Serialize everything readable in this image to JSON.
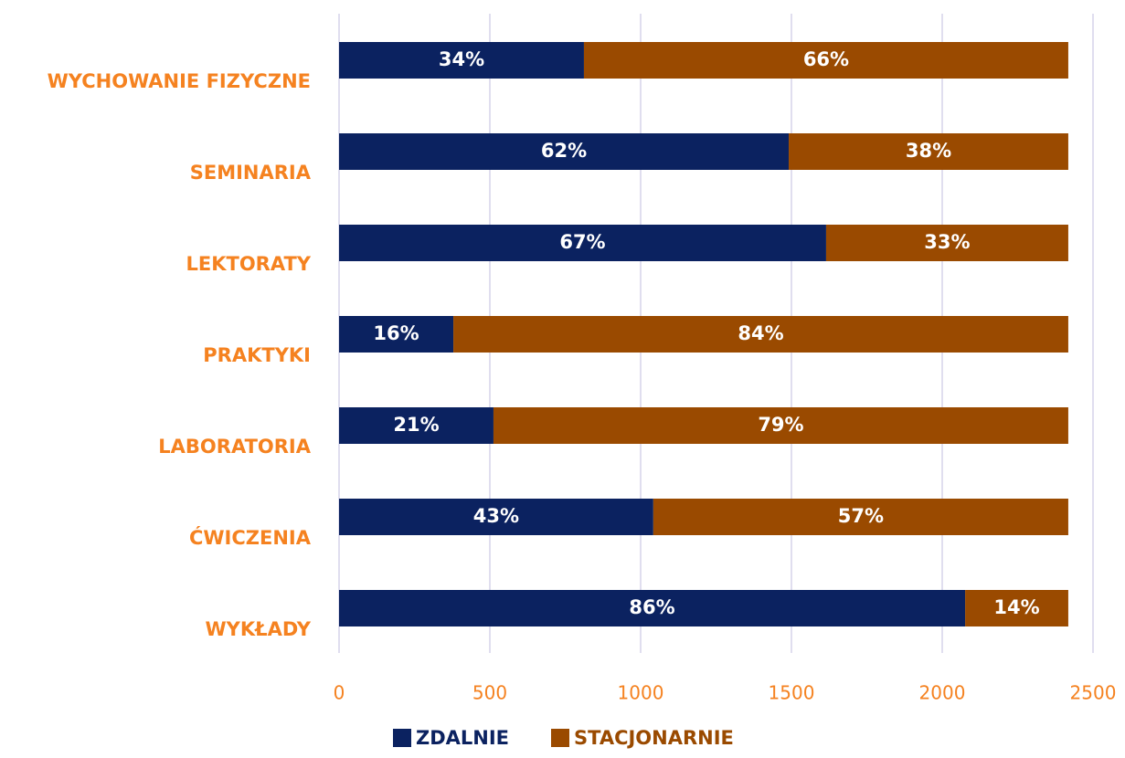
{
  "chart_data": {
    "type": "stacked-bar-horizontal",
    "categories": [
      "WYCHOWANIE FIZYCZNE",
      "SEMINARIA",
      "LEKTORATY",
      "PRAKTYKI",
      "LABORATORIA",
      "ĆWICZENIA",
      "WYKŁADY"
    ],
    "series": [
      {
        "name": "ZDALNIE",
        "color": "#0b2260",
        "values": [
          812,
          1491,
          1615,
          379,
          512,
          1042,
          2076
        ],
        "value_labels": [
          "34%",
          "62%",
          "67%",
          "16%",
          "21%",
          "43%",
          "86%"
        ]
      },
      {
        "name": "STACJONARNIE",
        "color": "#9a4a00",
        "values": [
          1606,
          927,
          803,
          2039,
          1906,
          1376,
          342
        ],
        "value_labels": [
          "66%",
          "38%",
          "33%",
          "84%",
          "79%",
          "57%",
          "14%"
        ]
      }
    ],
    "xlim": [
      0,
      2500
    ],
    "xticks": [
      0,
      500,
      1000,
      1500,
      2000,
      2500
    ],
    "grid": true,
    "legend": "bottom"
  }
}
